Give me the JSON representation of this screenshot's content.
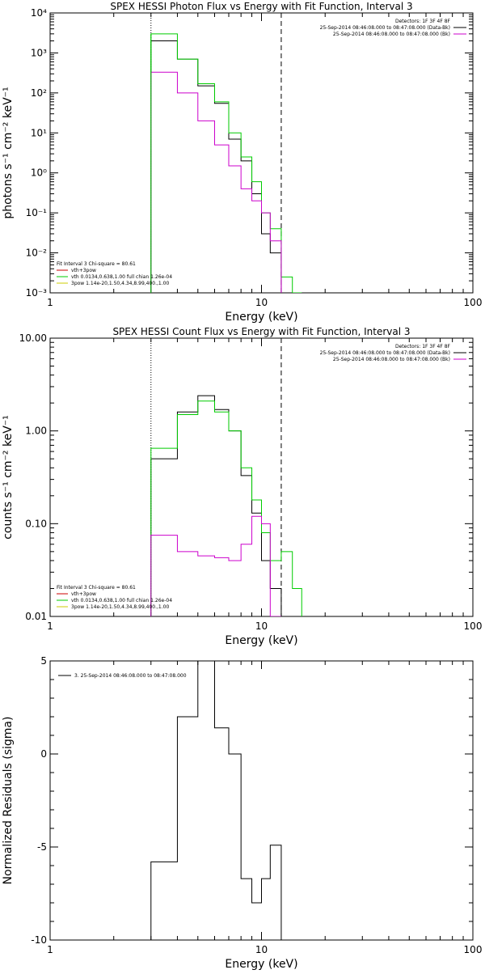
{
  "chart_data": [
    {
      "type": "line",
      "title": "SPEX HESSI Photon Flux vs Energy with Fit Function, Interval 3",
      "xlabel": "Energy (keV)",
      "ylabel": "photons s⁻¹ cm⁻² keV⁻¹",
      "xscale": "log",
      "yscale": "log",
      "xlim": [
        1,
        100
      ],
      "ylim": [
        0.001,
        10000
      ],
      "x_ticks": [
        1,
        10,
        100
      ],
      "x_tick_labels": [
        "1",
        "10",
        "100"
      ],
      "y_ticks": [
        0.001,
        0.01,
        0.1,
        1,
        10,
        100,
        1000,
        10000
      ],
      "y_tick_labels": [
        "10⁻³",
        "10⁻²",
        "10⁻¹",
        "10⁰",
        "10¹",
        "10²",
        "10³",
        "10⁴"
      ],
      "vlines": [
        {
          "x": 3.0,
          "style": "dotted"
        },
        {
          "x": 12.4,
          "style": "dashed"
        }
      ],
      "legend_tr": {
        "header": "Detectors: 1F 3F 4F 8F",
        "entries": [
          {
            "text": "25-Sep-2014 08:46:08.000 to 08:47:08.000 (Data-Bk)",
            "color": "#000000"
          },
          {
            "text": "25-Sep-2014 08:46:08.000 to 08:47:08.000 (Bk)",
            "color": "#cc00cc"
          }
        ]
      },
      "legend_bl": {
        "header": "Fit Interval 3   Chi-square = 80.61",
        "entries": [
          {
            "text": "vth+3pow",
            "color": "#cc0000"
          },
          {
            "text": "vth 0.0134,0.638,1.00  full chian 1.26e-04",
            "color": "#00cc00"
          },
          {
            "text": "3pow 1.14e-20,1.50,4.34,8.99,400.,1.00",
            "color": "#cccc00"
          }
        ]
      },
      "series": [
        {
          "color": "#000000",
          "edges": [
            3.0,
            4.0,
            5.0,
            6.0,
            7.0,
            8.0,
            9.0,
            10.0,
            11.0,
            12.4
          ],
          "values": [
            2000,
            700,
            150,
            55,
            7,
            2,
            0.3,
            0.03,
            0.01
          ]
        },
        {
          "color": "#00cc00",
          "edges": [
            3.0,
            4.0,
            5.0,
            6.0,
            7.0,
            8.0,
            9.0,
            10.0,
            11.0,
            12.4,
            14.0,
            15.5
          ],
          "values": [
            3000,
            700,
            170,
            60,
            10,
            2.5,
            0.6,
            0.1,
            0.04,
            0.0025,
            0.001
          ]
        },
        {
          "color": "#cc00cc",
          "edges": [
            3.0,
            4.0,
            5.0,
            6.0,
            7.0,
            8.0,
            9.0,
            10.0,
            11.0,
            12.4
          ],
          "values": [
            330,
            100,
            20,
            5,
            1.5,
            0.4,
            0.2,
            0.1,
            0.02
          ]
        },
        {
          "color": "#00cc00",
          "edges": [
            3.0,
            3.0
          ],
          "values": [
            3000
          ],
          "vertical_drop": true
        }
      ]
    },
    {
      "type": "line",
      "title": "SPEX HESSI Count Flux vs Energy with Fit Function, Interval 3",
      "xlabel": "Energy (keV)",
      "ylabel": "counts s⁻¹ cm⁻² keV⁻¹",
      "xscale": "log",
      "yscale": "log",
      "xlim": [
        1,
        100
      ],
      "ylim": [
        0.01,
        10
      ],
      "x_ticks": [
        1,
        10,
        100
      ],
      "x_tick_labels": [
        "1",
        "10",
        "100"
      ],
      "y_ticks": [
        0.01,
        0.1,
        1,
        10
      ],
      "y_tick_labels": [
        "0.01",
        "0.10",
        "1.00",
        "10.00"
      ],
      "vlines": [
        {
          "x": 3.0,
          "style": "dotted"
        },
        {
          "x": 12.4,
          "style": "dashed"
        }
      ],
      "legend_tr": {
        "header": "Detectors: 1F 3F 4F 8F",
        "entries": [
          {
            "text": "25-Sep-2014 08:46:08.000 to 08:47:08.000 (Data-Bk)",
            "color": "#000000"
          },
          {
            "text": "25-Sep-2014 08:46:08.000 to 08:47:08.000 (Bk)",
            "color": "#cc00cc"
          }
        ]
      },
      "legend_bl": {
        "header": "Fit Interval 3   Chi-square = 80.61",
        "entries": [
          {
            "text": "vth+3pow",
            "color": "#cc0000"
          },
          {
            "text": "vth 0.0134,0.638,1.00  full chian 1.26e-04",
            "color": "#00cc00"
          },
          {
            "text": "3pow 1.14e-20,1.50,4.34,8.99,400.,1.00",
            "color": "#cccc00"
          }
        ]
      },
      "series": [
        {
          "color": "#000000",
          "edges": [
            3.0,
            4.0,
            5.0,
            6.0,
            7.0,
            8.0,
            9.0,
            10.0,
            11.0,
            12.4
          ],
          "values": [
            0.5,
            1.6,
            2.4,
            1.7,
            1.0,
            0.33,
            0.13,
            0.04,
            0.02
          ]
        },
        {
          "color": "#00cc00",
          "edges": [
            3.0,
            4.0,
            5.0,
            6.0,
            7.0,
            8.0,
            9.0,
            10.0,
            11.0,
            12.4,
            14.0,
            15.5
          ],
          "values": [
            0.65,
            1.5,
            2.1,
            1.6,
            1.0,
            0.4,
            0.18,
            0.08,
            0.04,
            0.05,
            0.02
          ]
        },
        {
          "color": "#cc00cc",
          "edges": [
            3.0,
            4.0,
            5.0,
            6.0,
            7.0,
            8.0,
            9.0,
            10.0,
            11.0,
            12.4
          ],
          "values": [
            0.075,
            0.05,
            0.045,
            0.043,
            0.04,
            0.06,
            0.12,
            0.1,
            0.01
          ]
        }
      ]
    },
    {
      "type": "line",
      "title": "",
      "xlabel": "Energy (keV)",
      "ylabel": "Normalized Residuals (sigma)",
      "xscale": "log",
      "yscale": "linear",
      "xlim": [
        1,
        100
      ],
      "ylim": [
        -10,
        5
      ],
      "x_ticks": [
        1,
        10,
        100
      ],
      "x_tick_labels": [
        "1",
        "10",
        "100"
      ],
      "y_ticks": [
        -10,
        -5,
        0,
        5
      ],
      "y_tick_labels": [
        "-10",
        "-5",
        "0",
        "5"
      ],
      "legend_tl": {
        "entries": [
          {
            "text": "3. 25-Sep-2014 08:46:08.000 to 08:47:08.000",
            "color": "#000000"
          }
        ]
      },
      "series": [
        {
          "color": "#000000",
          "edges": [
            3.0,
            4.0,
            5.0,
            6.0,
            7.0,
            8.0,
            9.0,
            10.0,
            11.0,
            12.4
          ],
          "values": [
            -5.8,
            2.0,
            5.0,
            1.4,
            0.0,
            -6.7,
            -8.0,
            -6.7,
            -4.9
          ]
        }
      ]
    }
  ]
}
